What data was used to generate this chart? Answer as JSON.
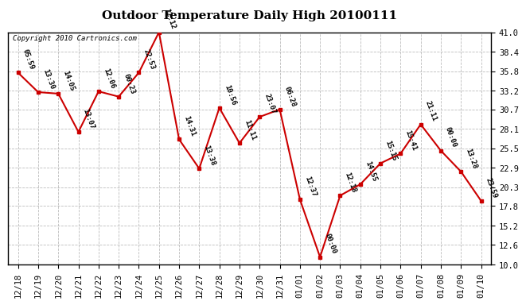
{
  "title": "Outdoor Temperature Daily High 20100111",
  "copyright": "Copyright 2010 Cartronics.com",
  "x_labels": [
    "12/18",
    "12/19",
    "12/20",
    "12/21",
    "12/22",
    "12/23",
    "12/24",
    "12/25",
    "12/26",
    "12/27",
    "12/28",
    "12/29",
    "12/30",
    "12/31",
    "01/01",
    "01/02",
    "01/03",
    "01/04",
    "01/05",
    "01/06",
    "01/07",
    "01/08",
    "01/09",
    "01/10"
  ],
  "y_values": [
    35.6,
    33.0,
    32.8,
    27.7,
    33.1,
    32.4,
    35.6,
    41.0,
    26.7,
    22.8,
    30.9,
    26.2,
    29.7,
    30.7,
    18.7,
    11.0,
    19.2,
    20.7,
    23.5,
    24.8,
    28.7,
    25.2,
    22.4,
    18.5
  ],
  "time_labels": [
    "05:59",
    "13:30",
    "14:05",
    "13:07",
    "12:06",
    "00:23",
    "22:53",
    "12:12",
    "14:31",
    "13:38",
    "10:56",
    "11:11",
    "23:07",
    "06:28",
    "12:37",
    "00:00",
    "12:18",
    "14:55",
    "15:15",
    "15:41",
    "21:11",
    "00:00",
    "13:28",
    "23:59"
  ],
  "y_ticks": [
    10.0,
    12.6,
    15.2,
    17.8,
    20.3,
    22.9,
    25.5,
    28.1,
    30.7,
    33.2,
    35.8,
    38.4,
    41.0
  ],
  "line_color": "#cc0000",
  "marker_color": "#cc0000",
  "bg_color": "#ffffff",
  "plot_bg_color": "#ffffff",
  "grid_color": "#bbbbbb",
  "title_fontsize": 11,
  "tick_fontsize": 7.5,
  "annotation_fontsize": 6.5,
  "copyright_fontsize": 6.5
}
